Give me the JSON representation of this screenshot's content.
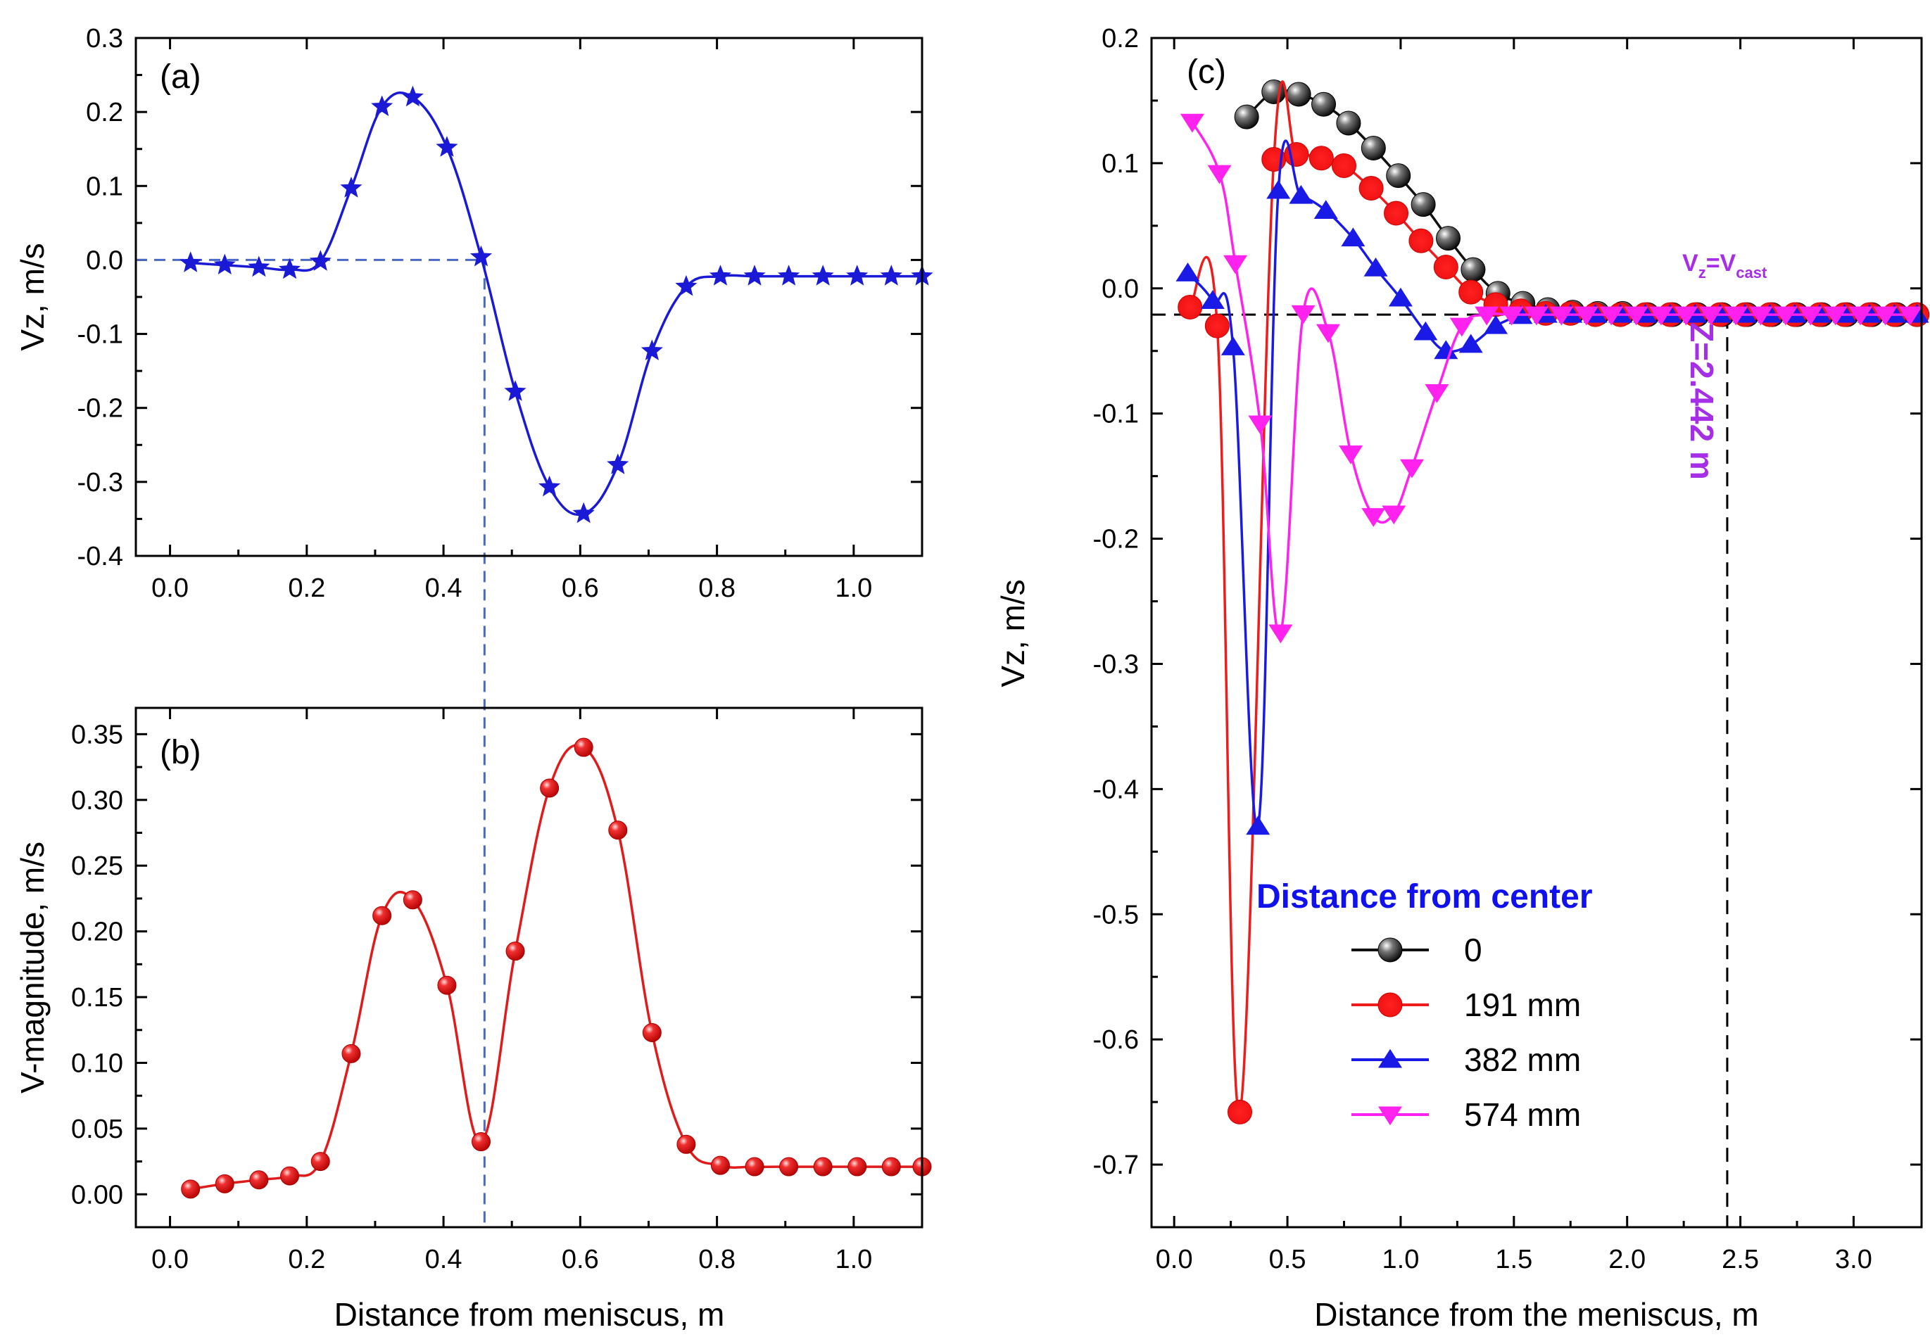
{
  "chart_data": [
    {
      "id": "a",
      "type": "line",
      "panel_label": "(a)",
      "xlabel": "",
      "ylabel": "Vz, m/s",
      "xlim": [
        -0.05,
        1.1
      ],
      "ylim": [
        -0.4,
        0.3
      ],
      "xticks": [
        "0.0",
        "0.2",
        "0.4",
        "0.6",
        "0.8",
        "1.0"
      ],
      "yticks": [
        "-0.4",
        "-0.3",
        "-0.2",
        "-0.1",
        "0.0",
        "0.1",
        "0.2",
        "0.3"
      ],
      "colors": {
        "series": "#1a1ad6",
        "guide": "#4a68c8"
      },
      "series": [
        {
          "name": "Vz",
          "marker": "star",
          "x": [
            0.03,
            0.08,
            0.13,
            0.175,
            0.22,
            0.265,
            0.31,
            0.355,
            0.405,
            0.455,
            0.505,
            0.555,
            0.605,
            0.655,
            0.705,
            0.755,
            0.805,
            0.855,
            0.905,
            0.955,
            1.005,
            1.055,
            1.1
          ],
          "y": [
            -0.004,
            -0.007,
            -0.01,
            -0.013,
            -0.002,
            0.097,
            0.207,
            0.22,
            0.152,
            0.004,
            -0.178,
            -0.307,
            -0.343,
            -0.277,
            -0.123,
            -0.036,
            -0.022,
            -0.022,
            -0.022,
            -0.022,
            -0.022,
            -0.022,
            -0.022
          ]
        }
      ],
      "guides": {
        "zero_line_to_x": 0.46,
        "vertical_x": 0.46
      }
    },
    {
      "id": "b",
      "type": "line",
      "panel_label": "(b)",
      "xlabel": "Distance from meniscus, m",
      "ylabel": "V-magnitude, m/s",
      "xlim": [
        -0.05,
        1.1
      ],
      "ylim": [
        -0.025,
        0.37
      ],
      "xticks": [
        "0.0",
        "0.2",
        "0.4",
        "0.6",
        "0.8",
        "1.0"
      ],
      "yticks": [
        "0.00",
        "0.05",
        "0.10",
        "0.15",
        "0.20",
        "0.25",
        "0.30",
        "0.35"
      ],
      "colors": {
        "series": "#e01b1b"
      },
      "series": [
        {
          "name": "V-magnitude",
          "marker": "sphere",
          "x": [
            0.03,
            0.08,
            0.13,
            0.175,
            0.22,
            0.265,
            0.31,
            0.355,
            0.405,
            0.455,
            0.505,
            0.555,
            0.605,
            0.655,
            0.705,
            0.755,
            0.805,
            0.855,
            0.905,
            0.955,
            1.005,
            1.055,
            1.1
          ],
          "y": [
            0.004,
            0.008,
            0.011,
            0.014,
            0.025,
            0.107,
            0.212,
            0.224,
            0.159,
            0.04,
            0.185,
            0.309,
            0.34,
            0.277,
            0.123,
            0.038,
            0.022,
            0.021,
            0.021,
            0.021,
            0.021,
            0.021,
            0.021
          ]
        }
      ]
    },
    {
      "id": "c",
      "type": "line",
      "panel_label": "(c)",
      "xlabel": "Distance from the meniscus, m",
      "ylabel": "Vz, m/s",
      "xlim": [
        -0.1,
        3.3
      ],
      "ylim": [
        -0.75,
        0.2
      ],
      "xticks": [
        "0.0",
        "0.5",
        "1.0",
        "1.5",
        "2.0",
        "2.5",
        "3.0"
      ],
      "yticks": [
        "-0.7",
        "-0.6",
        "-0.5",
        "-0.4",
        "-0.3",
        "-0.2",
        "-0.1",
        "0.0",
        "0.1",
        "0.2"
      ],
      "legend_title": "Distance from center",
      "legend_position": "lower-center",
      "annotations": {
        "vcast_label": "Vz=Vcast",
        "vcast_main": "V",
        "vcast_sub1": "z",
        "vcast_mid": "=V",
        "vcast_sub2": "cast",
        "vcast_value": -0.021,
        "z_label": "Z=2.442 m",
        "z_value": 2.442
      },
      "colors": {
        "title": "#1111ee",
        "annotation": "#a52ee6",
        "guide": "#000000"
      },
      "series": [
        {
          "name": "0",
          "color": "#111111",
          "marker": "sphere",
          "x": [
            0.32,
            0.44,
            0.55,
            0.66,
            0.77,
            0.88,
            0.99,
            1.1,
            1.21,
            1.32,
            1.43,
            1.54,
            1.65,
            1.76,
            1.87,
            1.98,
            2.09,
            2.2,
            2.31,
            2.42,
            2.53,
            2.64,
            2.75,
            2.86,
            2.97,
            3.08,
            3.19,
            3.28
          ],
          "y": [
            0.137,
            0.157,
            0.155,
            0.147,
            0.132,
            0.112,
            0.09,
            0.067,
            0.04,
            0.015,
            -0.004,
            -0.012,
            -0.017,
            -0.019,
            -0.02,
            -0.02,
            -0.021,
            -0.021,
            -0.021,
            -0.021,
            -0.021,
            -0.021,
            -0.021,
            -0.021,
            -0.021,
            -0.021,
            -0.021,
            -0.021
          ]
        },
        {
          "name": "191 mm",
          "color": "#ee1c1c",
          "marker": "sphere",
          "x": [
            0.07,
            0.19,
            0.29,
            0.44,
            0.54,
            0.65,
            0.75,
            0.87,
            0.98,
            1.09,
            1.2,
            1.31,
            1.42,
            1.53,
            1.64,
            1.75,
            1.86,
            1.97,
            2.08,
            2.19,
            2.3,
            2.41,
            2.52,
            2.63,
            2.74,
            2.85,
            2.96,
            3.07,
            3.18,
            3.28
          ],
          "y": [
            -0.015,
            -0.03,
            -0.658,
            0.103,
            0.107,
            0.104,
            0.098,
            0.08,
            0.06,
            0.038,
            0.017,
            -0.003,
            -0.013,
            -0.018,
            -0.02,
            -0.02,
            -0.021,
            -0.021,
            -0.021,
            -0.021,
            -0.021,
            -0.021,
            -0.021,
            -0.021,
            -0.021,
            -0.021,
            -0.021,
            -0.021,
            -0.021,
            -0.021
          ]
        },
        {
          "name": "382 mm",
          "color": "#1a1ae6",
          "marker": "triangle-up",
          "x": [
            0.06,
            0.17,
            0.26,
            0.37,
            0.46,
            0.56,
            0.67,
            0.79,
            0.89,
            1.0,
            1.11,
            1.2,
            1.31,
            1.42,
            1.53,
            1.64,
            1.75,
            1.86,
            1.97,
            2.08,
            2.19,
            2.3,
            2.41,
            2.52,
            2.63,
            2.74,
            2.85,
            2.96,
            3.07,
            3.18,
            3.28
          ],
          "y": [
            0.012,
            -0.01,
            -0.047,
            -0.43,
            0.078,
            0.074,
            0.062,
            0.04,
            0.016,
            -0.008,
            -0.035,
            -0.05,
            -0.045,
            -0.03,
            -0.022,
            -0.021,
            -0.021,
            -0.021,
            -0.021,
            -0.021,
            -0.021,
            -0.021,
            -0.021,
            -0.021,
            -0.021,
            -0.021,
            -0.021,
            -0.021,
            -0.021,
            -0.021,
            -0.021
          ]
        },
        {
          "name": "574 mm",
          "color": "#ff22ee",
          "marker": "triangle-down",
          "x": [
            0.08,
            0.2,
            0.27,
            0.38,
            0.47,
            0.57,
            0.68,
            0.78,
            0.88,
            0.97,
            1.05,
            1.16,
            1.27,
            1.38,
            1.49,
            1.6,
            1.71,
            1.82,
            1.93,
            2.04,
            2.15,
            2.26,
            2.37,
            2.48,
            2.59,
            2.7,
            2.81,
            2.92,
            3.03,
            3.14,
            3.25
          ],
          "y": [
            0.133,
            0.092,
            0.02,
            -0.108,
            -0.275,
            -0.02,
            -0.035,
            -0.132,
            -0.182,
            -0.18,
            -0.143,
            -0.083,
            -0.03,
            -0.021,
            -0.021,
            -0.021,
            -0.021,
            -0.021,
            -0.021,
            -0.021,
            -0.021,
            -0.021,
            -0.021,
            -0.021,
            -0.021,
            -0.021,
            -0.021,
            -0.021,
            -0.021,
            -0.021,
            -0.021
          ]
        }
      ]
    }
  ]
}
